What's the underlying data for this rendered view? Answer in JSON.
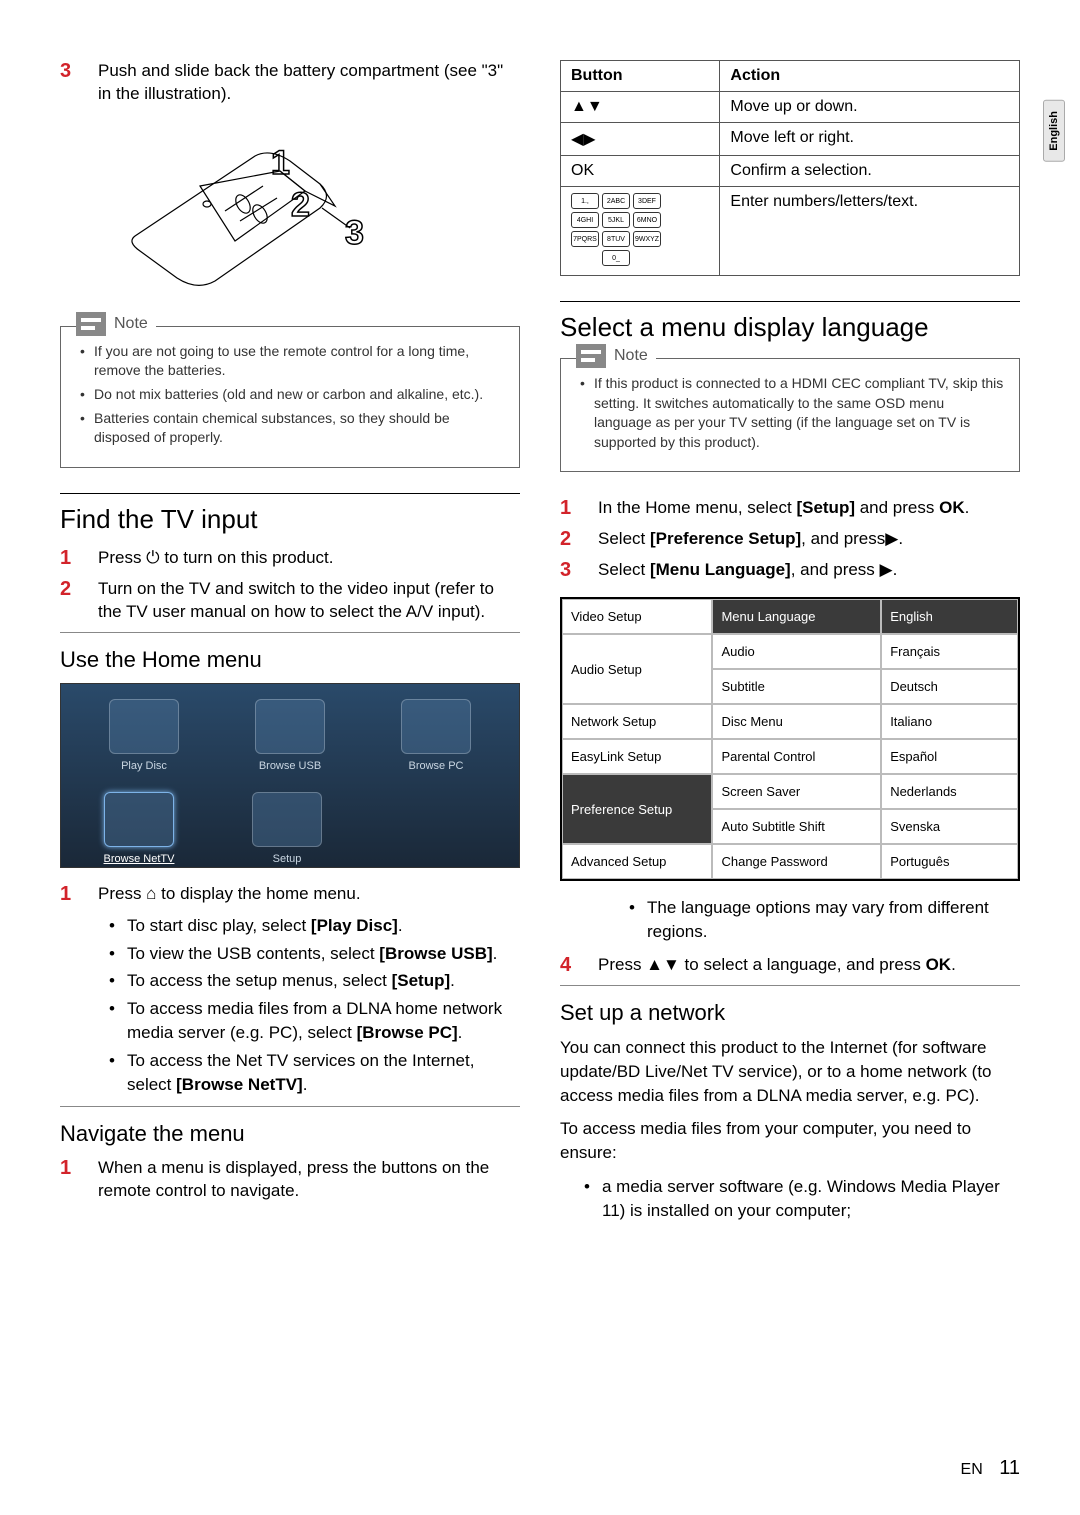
{
  "lang_tab": "English",
  "left": {
    "step3": {
      "num": "3",
      "text_a": "Push and slide back the battery compartment (see \"3\" in the illustration)."
    },
    "remote_labels": [
      "1",
      "2",
      "3"
    ],
    "note_title": "Note",
    "note_items": [
      "If you are not going to use the remote control for a long time, remove the batteries.",
      "Do not mix batteries (old and new or carbon and alkaline, etc.).",
      "Batteries contain chemical substances, so they should be disposed of properly."
    ],
    "find_tv_title": "Find the TV input",
    "find_tv_steps": [
      {
        "num": "1",
        "text": "Press ⏻ to turn on this product."
      },
      {
        "num": "2",
        "text": "Turn on the TV and switch to the video input (refer to the TV user manual on how to select the A/V input)."
      }
    ],
    "home_title": "Use the Home menu",
    "home_items": [
      {
        "label": "Play Disc"
      },
      {
        "label": "Browse USB"
      },
      {
        "label": "Browse PC"
      },
      {
        "label": "Browse NetTV",
        "selected": true
      },
      {
        "label": "Setup"
      }
    ],
    "home_step": {
      "num": "1",
      "text": "Press ⌂ to display the home menu."
    },
    "home_bullets": [
      {
        "pre": "To start disc play, select ",
        "bold": "[Play Disc]",
        "post": "."
      },
      {
        "pre": "To view the USB contents, select ",
        "bold": "[Browse USB]",
        "post": "."
      },
      {
        "pre": "To access the setup menus, select ",
        "bold": "[Setup]",
        "post": "."
      },
      {
        "pre": "To access media files from a DLNA home network media server (e.g. PC), select ",
        "bold": "[Browse PC]",
        "post": "."
      },
      {
        "pre": "To access the Net TV services on the Internet, select ",
        "bold": "[Browse NetTV]",
        "post": "."
      }
    ],
    "nav_title": "Navigate the menu",
    "nav_step": {
      "num": "1",
      "text": "When a menu is displayed, press the buttons on the remote control to navigate."
    }
  },
  "right": {
    "btn_table": {
      "headers": [
        "Button",
        "Action"
      ],
      "rows": [
        {
          "button_symbol": "▲▼",
          "action": "Move up or down."
        },
        {
          "button_symbol": "◀▶",
          "action": "Move left or right."
        },
        {
          "button_symbol": "OK",
          "action": "Confirm a selection."
        },
        {
          "button_symbol": "KEYPAD",
          "action": "Enter numbers/letters/text."
        }
      ],
      "keypad_keys": [
        [
          "1.,",
          "2ABC",
          "3DEF"
        ],
        [
          "4GHI",
          "5JKL",
          "6MNO"
        ],
        [
          "7PQRS",
          "8TUV",
          "9WXYZ"
        ],
        [
          "0_"
        ]
      ]
    },
    "lang_title": "Select a menu display language",
    "lang_note_title": "Note",
    "lang_note_items": [
      "If this product is connected to a HDMI CEC compliant TV, skip this setting. It switches automatically to the same OSD menu language as per your TV setting (if the language set on TV is supported by this product)."
    ],
    "lang_steps": [
      {
        "num": "1",
        "html": "In the Home menu, select <b>[Setup]</b> and press <b>OK</b>."
      },
      {
        "num": "2",
        "html": "Select <b>[Preference Setup]</b>, and press▶."
      },
      {
        "num": "3",
        "html": "Select <b>[Menu Language]</b>, and press ▶."
      }
    ],
    "menu_shot": {
      "col1": [
        "Video Setup",
        "Audio Setup",
        "Network Setup",
        "EasyLink Setup",
        "Preference Setup",
        "Advanced Setup"
      ],
      "col1_selected_index": 4,
      "col2": [
        "Menu Language",
        "Audio",
        "Subtitle",
        "Disc Menu",
        "Parental Control",
        "Screen Saver",
        "Auto Subtitle Shift",
        "Change Password"
      ],
      "col2_selected_index": 0,
      "col3": [
        "English",
        "Français",
        "Deutsch",
        "Italiano",
        "Español",
        "Nederlands",
        "Svenska",
        "Português"
      ],
      "col3_selected_index": 0
    },
    "lang_bullet": "The language options may vary from different regions.",
    "lang_step4": {
      "num": "4",
      "html": "Press ▲▼ to select a language, and press <b>OK</b>."
    },
    "network_title": "Set up a network",
    "network_p1": "You can connect this product to the Internet (for software update/BD Live/Net TV service), or to a home network (to access media files from a DLNA media server, e.g. PC).",
    "network_p2": "To access media files from your computer, you need to ensure:",
    "network_bullet": "a media server software (e.g. Windows Media Player 11) is installed on your computer;"
  },
  "footer": {
    "lang": "EN",
    "page": "11"
  }
}
